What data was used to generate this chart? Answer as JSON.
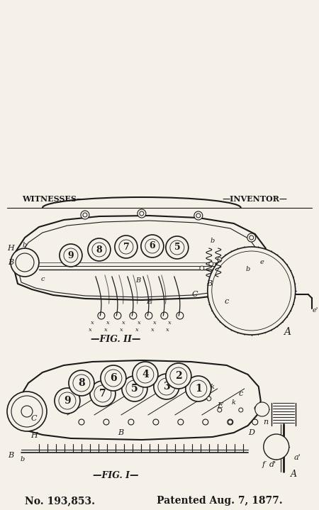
{
  "title_left": "No. 193,853.",
  "title_right": "Patented Aug. 7, 1877.",
  "fig1_label": "—FIG. I—",
  "fig2_label": "—FIG. II—",
  "bottom_left": "WITNESSES—",
  "bottom_right": "—INVENTOR—",
  "bg_color": "#f5f0e8",
  "line_color": "#1a1a1a",
  "fig_width": 4.5,
  "fig_height": 7.19,
  "dpi": 100
}
